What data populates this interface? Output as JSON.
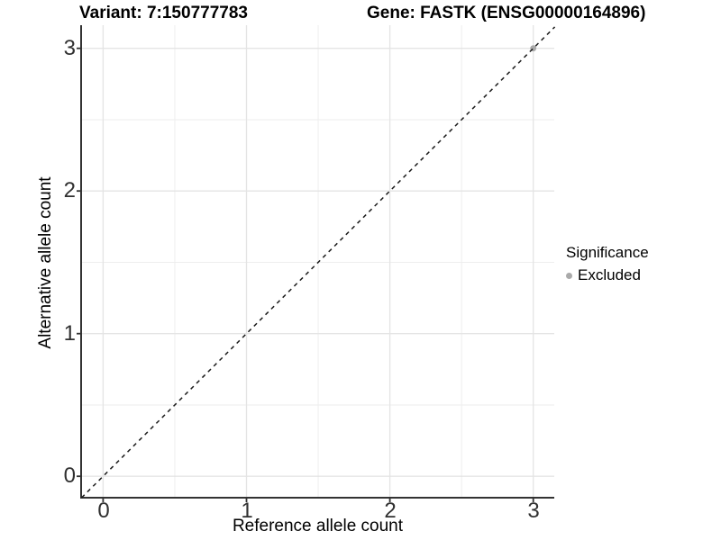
{
  "figure": {
    "title_left": "Variant: 7:150777783",
    "title_right": "Gene: FASTK (ENSG00000164896)"
  },
  "chart_data": {
    "type": "scatter",
    "title": "Variant: 7:150777783  /  Gene: FASTK (ENSG00000164896)",
    "xlabel": "Reference allele count",
    "ylabel": "Alternative allele count",
    "xlim": [
      -0.15,
      3.15
    ],
    "ylim": [
      -0.15,
      3.15
    ],
    "x_ticks": [
      0,
      1,
      2,
      3
    ],
    "y_ticks": [
      0,
      1,
      2,
      3
    ],
    "x_tick_labels": [
      "0",
      "1",
      "2",
      "3"
    ],
    "y_tick_labels": [
      "0",
      "1",
      "2",
      "3"
    ],
    "grid": "major and minor gridlines on white panel",
    "series": [
      {
        "name": "Excluded",
        "color": "#aaaaaa",
        "marker": "circle",
        "points": [
          {
            "x": 3,
            "y": 3
          }
        ]
      }
    ],
    "reference_line": {
      "slope": 1,
      "intercept": 0,
      "style": "dashed",
      "color": "#1a1a1a"
    },
    "legend": {
      "title": "Significance",
      "position": "right",
      "items": [
        {
          "label": "Excluded",
          "color": "#aaaaaa",
          "marker": "circle"
        }
      ]
    },
    "colors": {
      "panel_background": "#ffffff",
      "grid_major": "#e4e4e4",
      "grid_minor": "#eeeeee",
      "axis_line": "#333333",
      "tick_text": "#303030"
    }
  }
}
